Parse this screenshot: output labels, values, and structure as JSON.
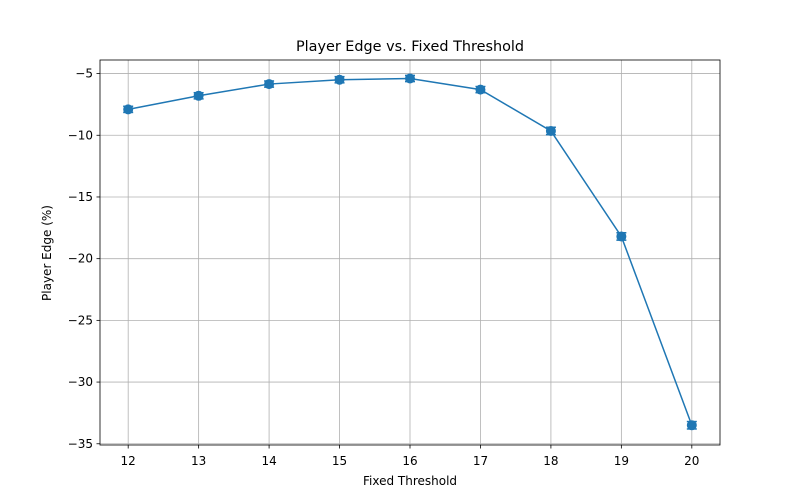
{
  "chart_data": {
    "type": "line",
    "title": "Player Edge vs. Fixed Threshold",
    "xlabel": "Fixed Threshold",
    "ylabel": "Player Edge (%)",
    "xlim": [
      11.6,
      20.4
    ],
    "ylim": [
      -35.1,
      -3.9
    ],
    "xticks": [
      12,
      13,
      14,
      15,
      16,
      17,
      18,
      19,
      20
    ],
    "yticks": [
      -35,
      -30,
      -25,
      -20,
      -15,
      -10,
      -5
    ],
    "grid": true,
    "series": [
      {
        "color": "#1f77b4",
        "marker": "circle",
        "x": [
          12,
          13,
          14,
          15,
          16,
          17,
          18,
          19,
          20
        ],
        "y": [
          -7.9,
          -6.8,
          -5.85,
          -5.5,
          -5.4,
          -6.3,
          -9.65,
          -18.2,
          -33.5
        ],
        "error": [
          0.25,
          0.25,
          0.25,
          0.25,
          0.25,
          0.25,
          0.3,
          0.3,
          0.3
        ]
      }
    ]
  }
}
